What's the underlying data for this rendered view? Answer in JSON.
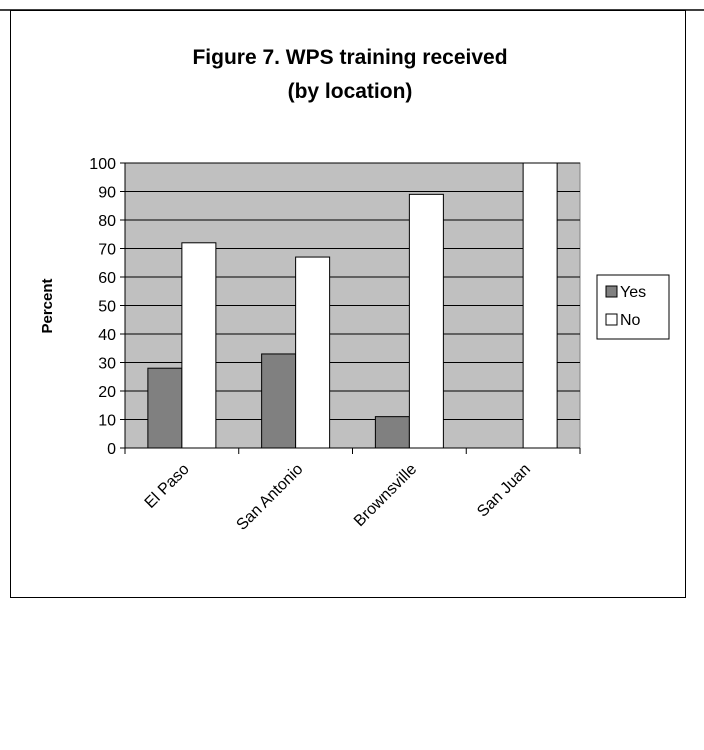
{
  "chart_data": {
    "type": "bar",
    "title": [
      "Figure 7. WPS training received",
      "(by location)"
    ],
    "y_label": "Percent",
    "categories": [
      "El Paso",
      "San Antonio",
      "Brownsville",
      "San Juan"
    ],
    "series": [
      {
        "name": "Yes",
        "color": "#808080",
        "values": [
          28,
          33,
          11,
          0
        ]
      },
      {
        "name": "No",
        "color": "#ffffff",
        "values": [
          72,
          67,
          89,
          100
        ]
      }
    ],
    "ylim": [
      0,
      100
    ],
    "yticks": [
      0,
      10,
      20,
      30,
      40,
      50,
      60,
      70,
      80,
      90,
      100
    ],
    "grid": true,
    "legend": "right",
    "plot_background": "#c0c0c0"
  }
}
